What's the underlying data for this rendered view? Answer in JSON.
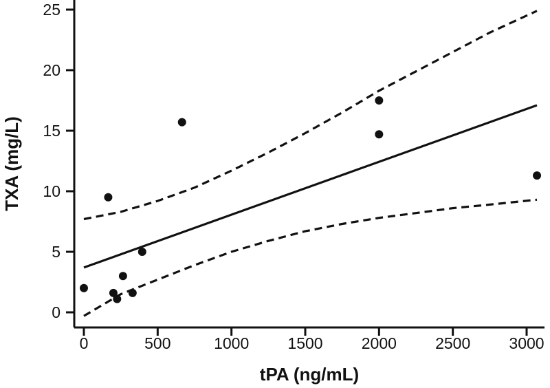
{
  "chart_data": {
    "type": "scatter",
    "title": "",
    "xlabel": "tPA (ng/mL)",
    "ylabel": "TXA (mg/L)",
    "xlim": [
      -60,
      3100
    ],
    "ylim": [
      -1,
      25
    ],
    "x_ticks": [
      0,
      500,
      1000,
      1500,
      2000,
      2500,
      3000
    ],
    "y_ticks": [
      0,
      5,
      10,
      15,
      20,
      25
    ],
    "grid": false,
    "legend": "none",
    "points": [
      {
        "x": 0,
        "y": 2.0
      },
      {
        "x": 165,
        "y": 9.5
      },
      {
        "x": 200,
        "y": 1.6
      },
      {
        "x": 225,
        "y": 1.1
      },
      {
        "x": 265,
        "y": 3.0
      },
      {
        "x": 330,
        "y": 1.6
      },
      {
        "x": 395,
        "y": 5.0
      },
      {
        "x": 665,
        "y": 15.7
      },
      {
        "x": 2000,
        "y": 17.5
      },
      {
        "x": 2000,
        "y": 14.7
      },
      {
        "x": 3070,
        "y": 11.3
      }
    ],
    "regression_line": {
      "x": [
        0,
        3070
      ],
      "y": [
        3.7,
        17.1
      ]
    },
    "confidence_upper": {
      "x": [
        0,
        250,
        500,
        750,
        1000,
        1250,
        1500,
        1750,
        2000,
        2250,
        2500,
        2750,
        3070
      ],
      "y": [
        7.7,
        8.3,
        9.2,
        10.3,
        11.7,
        13.2,
        14.8,
        16.5,
        18.3,
        19.9,
        21.5,
        23.1,
        24.9
      ]
    },
    "confidence_lower": {
      "x": [
        0,
        250,
        500,
        750,
        1000,
        1250,
        1500,
        1750,
        2000,
        2250,
        2500,
        2750,
        3070
      ],
      "y": [
        -0.3,
        1.5,
        2.7,
        3.9,
        5.0,
        5.9,
        6.7,
        7.3,
        7.8,
        8.2,
        8.6,
        8.9,
        9.3
      ]
    }
  }
}
